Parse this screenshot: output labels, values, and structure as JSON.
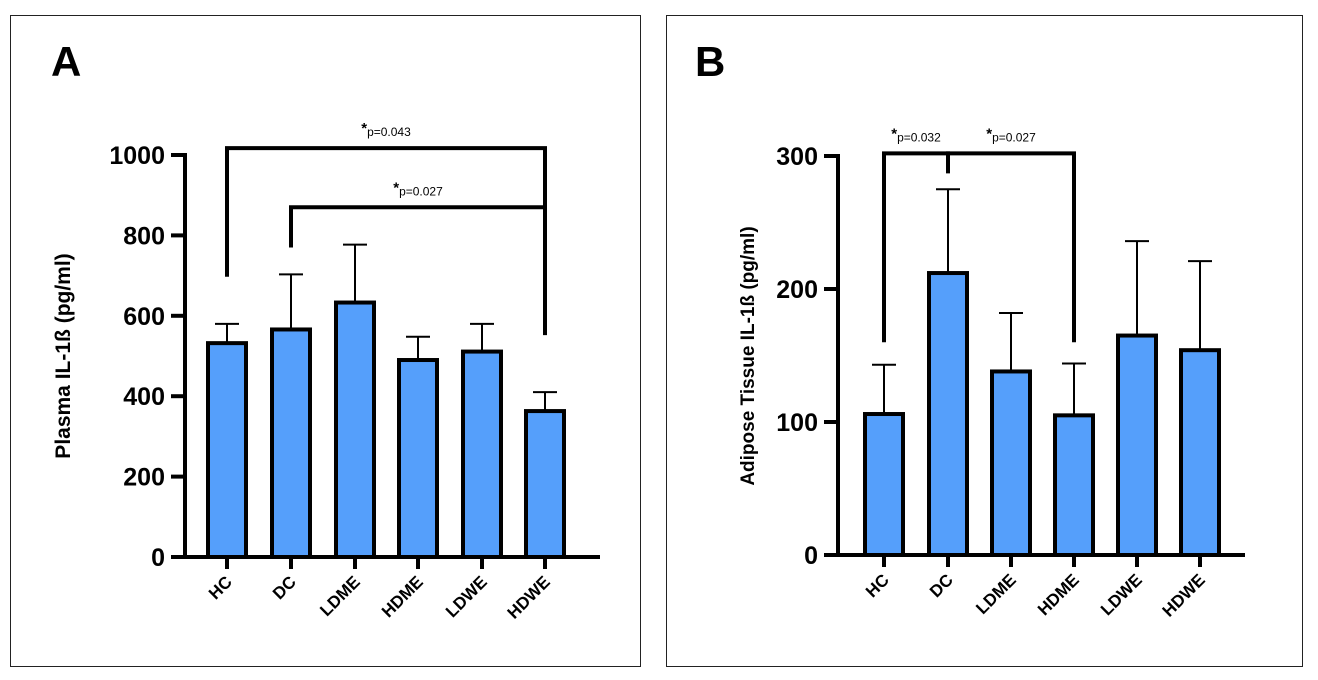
{
  "chart_data": [
    {
      "panel_label": "A",
      "type": "bar",
      "categories": [
        "HC",
        "DC",
        "LDME",
        "HDME",
        "LDWE",
        "HDWE"
      ],
      "values": [
        532,
        566,
        633,
        490,
        511,
        363
      ],
      "error_upper": [
        580,
        703,
        777,
        548,
        580,
        410
      ],
      "xlabel": "",
      "ylabel": "Plasma IL-1ß (pg/ml)",
      "ylim": [
        0,
        1000
      ],
      "yticks": [
        "0",
        "200",
        "400",
        "600",
        "800",
        "1000"
      ],
      "bar_color": "#559ffb",
      "grid": false,
      "annotations": [
        {
          "from": "HC",
          "to": "HDWE",
          "star": "*",
          "text": "p=0.043",
          "y": 1017,
          "leg_from": 697,
          "leg_to": 552
        },
        {
          "from": "DC",
          "to": "HDWE",
          "star": "*",
          "text": "p=0.027",
          "y": 870,
          "leg_from": 770,
          "leg_to": 870
        }
      ]
    },
    {
      "panel_label": "B",
      "type": "bar",
      "categories": [
        "HC",
        "DC",
        "LDME",
        "HDME",
        "LDWE",
        "HDWE"
      ],
      "values": [
        106,
        212,
        138,
        105,
        165,
        154
      ],
      "error_upper": [
        143,
        275,
        182,
        144,
        236,
        221
      ],
      "xlabel": "",
      "ylabel": "Adipose Tissue IL-1ß (pg/ml)",
      "ylim": [
        0,
        300
      ],
      "yticks": [
        "0",
        "100",
        "200",
        "300"
      ],
      "bar_color": "#559ffb",
      "grid": false,
      "annotations": [
        {
          "from": "HC",
          "to": "DC",
          "star": "*",
          "text": "p=0.032",
          "y": 302,
          "leg_from": 160,
          "leg_to": 287
        },
        {
          "from": "DC",
          "to": "HDME",
          "star": "*",
          "text": "p=0.027",
          "y": 302,
          "leg_from": 287,
          "leg_to": 160
        }
      ]
    }
  ]
}
